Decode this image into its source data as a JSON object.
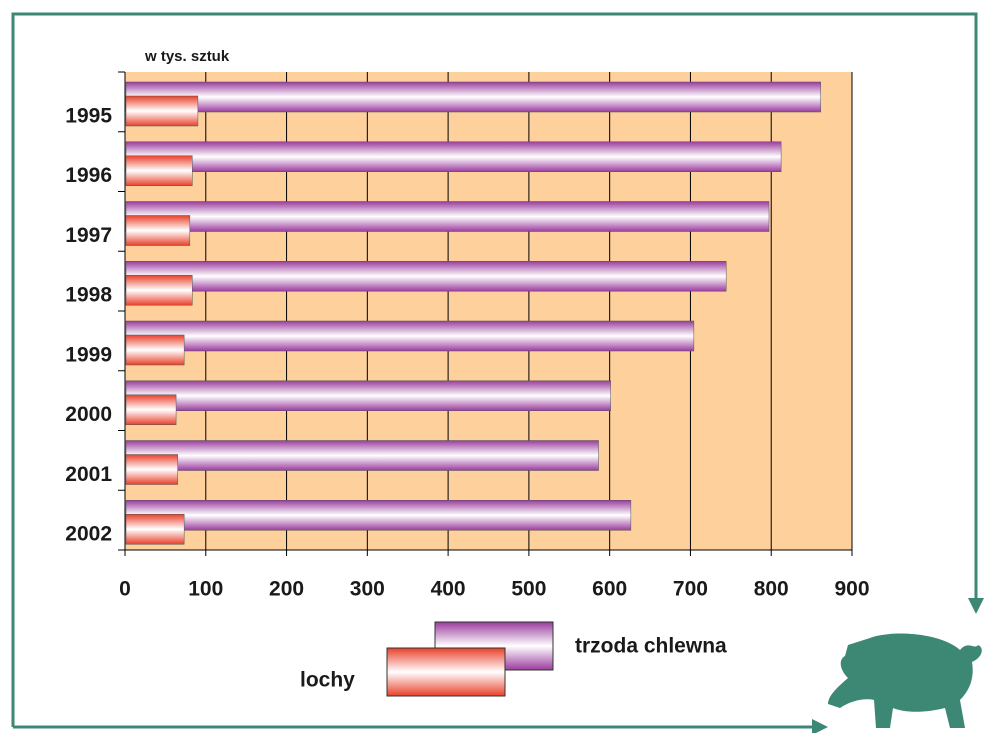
{
  "chart_data": {
    "type": "bar",
    "orientation": "horizontal",
    "y_label": "w tys. sztuk",
    "categories": [
      "1995",
      "1996",
      "1997",
      "1998",
      "1999",
      "2000",
      "2001",
      "2002"
    ],
    "series": [
      {
        "name": "trzoda chlewna",
        "color": "#9a3c9e",
        "values": [
          860,
          811,
          796,
          743,
          703,
          600,
          585,
          625
        ]
      },
      {
        "name": "lochy",
        "color": "#e8402a",
        "values": [
          89,
          82,
          79,
          82,
          72,
          62,
          64,
          72
        ]
      }
    ],
    "xlim": [
      0,
      900
    ],
    "xticks": [
      0,
      100,
      200,
      300,
      400,
      500,
      600,
      700,
      800,
      900
    ],
    "grid": true
  }
}
